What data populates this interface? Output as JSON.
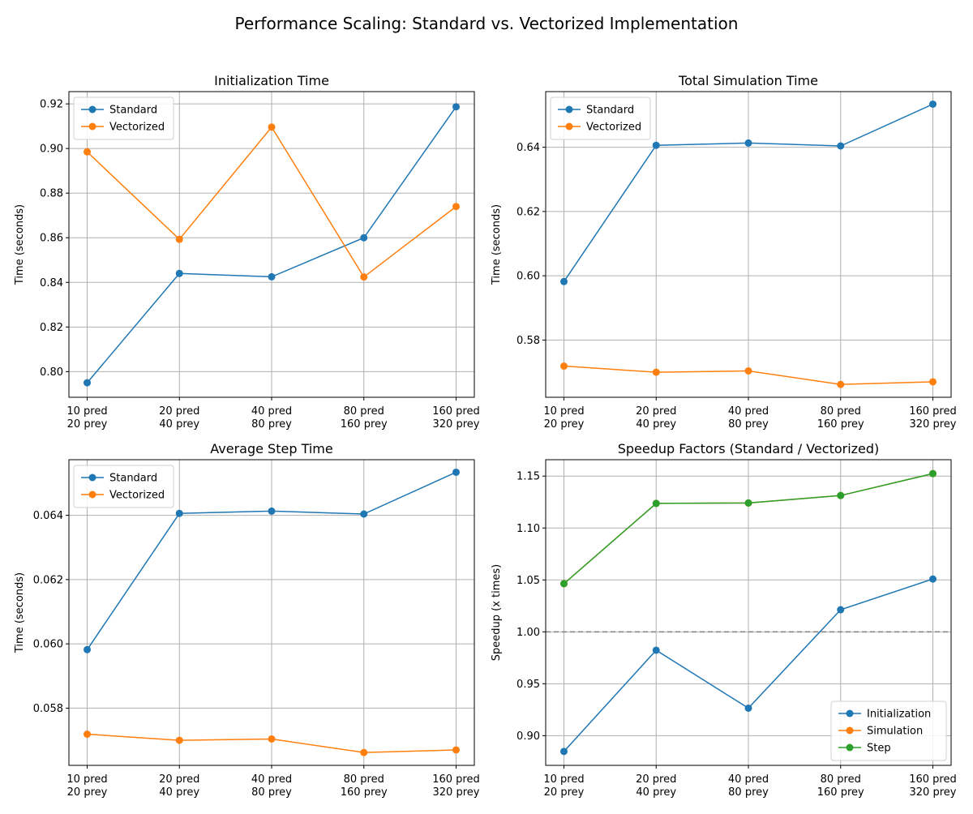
{
  "figure": {
    "title": "Performance Scaling: Standard vs. Vectorized Implementation"
  },
  "colors": {
    "blue": "#1f77b4",
    "orange": "#ff7f0e",
    "green": "#2ca02c",
    "grid": "#b0b0b0",
    "reference": "#808080"
  },
  "chart_data": [
    {
      "type": "line",
      "title": "Initialization Time",
      "xlabel": "",
      "ylabel": "Time (seconds)",
      "categories": [
        [
          "10 pred",
          "20 prey"
        ],
        [
          "20 pred",
          "40 prey"
        ],
        [
          "40 pred",
          "80 prey"
        ],
        [
          "80 pred",
          "160 prey"
        ],
        [
          "160 pred",
          "320 prey"
        ]
      ],
      "ylim": [
        0.7885,
        0.9255
      ],
      "yticks": [
        0.8,
        0.82,
        0.84,
        0.86,
        0.88,
        0.9,
        0.92
      ],
      "ytick_labels": [
        "0.80",
        "0.82",
        "0.84",
        "0.86",
        "0.88",
        "0.90",
        "0.92"
      ],
      "grid": true,
      "legend": "top-left",
      "series": [
        {
          "name": "Standard",
          "color": "#1f77b4",
          "values": [
            0.795,
            0.844,
            0.8425,
            0.86,
            0.9187
          ]
        },
        {
          "name": "Vectorized",
          "color": "#ff7f0e",
          "values": [
            0.8985,
            0.8593,
            0.9096,
            0.8424,
            0.874
          ]
        }
      ]
    },
    {
      "type": "line",
      "title": "Total Simulation Time",
      "xlabel": "",
      "ylabel": "Time (seconds)",
      "categories": [
        [
          "10 pred",
          "20 prey"
        ],
        [
          "20 pred",
          "40 prey"
        ],
        [
          "40 pred",
          "80 prey"
        ],
        [
          "80 pred",
          "160 prey"
        ],
        [
          "160 pred",
          "320 prey"
        ]
      ],
      "ylim": [
        0.5622,
        0.6573
      ],
      "yticks": [
        0.58,
        0.6,
        0.62,
        0.64
      ],
      "ytick_labels": [
        "0.58",
        "0.60",
        "0.62",
        "0.64"
      ],
      "grid": true,
      "legend": "top-left",
      "series": [
        {
          "name": "Standard",
          "color": "#1f77b4",
          "values": [
            0.5982,
            0.6406,
            0.6413,
            0.6404,
            0.6534
          ]
        },
        {
          "name": "Vectorized",
          "color": "#ff7f0e",
          "values": [
            0.5719,
            0.57,
            0.5704,
            0.5662,
            0.567
          ]
        }
      ]
    },
    {
      "type": "line",
      "title": "Average Step Time",
      "xlabel": "",
      "ylabel": "Time (seconds)",
      "categories": [
        [
          "10 pred",
          "20 prey"
        ],
        [
          "20 pred",
          "40 prey"
        ],
        [
          "40 pred",
          "80 prey"
        ],
        [
          "80 pred",
          "160 prey"
        ],
        [
          "160 pred",
          "320 prey"
        ]
      ],
      "ylim": [
        0.05622,
        0.06573
      ],
      "yticks": [
        0.058,
        0.06,
        0.062,
        0.064
      ],
      "ytick_labels": [
        "0.058",
        "0.060",
        "0.062",
        "0.064"
      ],
      "grid": true,
      "legend": "top-left",
      "series": [
        {
          "name": "Standard",
          "color": "#1f77b4",
          "values": [
            0.05982,
            0.06406,
            0.06413,
            0.06404,
            0.06534
          ]
        },
        {
          "name": "Vectorized",
          "color": "#ff7f0e",
          "values": [
            0.05719,
            0.057,
            0.05704,
            0.05662,
            0.0567
          ]
        }
      ]
    },
    {
      "type": "line",
      "title": "Speedup Factors (Standard / Vectorized)",
      "xlabel": "",
      "ylabel": "Speedup (x times)",
      "categories": [
        [
          "10 pred",
          "20 prey"
        ],
        [
          "20 pred",
          "40 prey"
        ],
        [
          "40 pred",
          "80 prey"
        ],
        [
          "80 pred",
          "160 prey"
        ],
        [
          "160 pred",
          "320 prey"
        ]
      ],
      "ylim": [
        0.8714,
        1.1658
      ],
      "yticks": [
        0.9,
        0.95,
        1.0,
        1.05,
        1.1,
        1.15
      ],
      "ytick_labels": [
        "0.90",
        "0.95",
        "1.00",
        "1.05",
        "1.10",
        "1.15"
      ],
      "grid": true,
      "legend": "bottom-right",
      "reference_line": 1.0,
      "series": [
        {
          "name": "Initialization",
          "color": "#1f77b4",
          "values": [
            0.8848,
            0.9823,
            0.9265,
            1.0213,
            1.0509
          ]
        },
        {
          "name": "Simulation",
          "color": "#ff7f0e",
          "values": [
            1.0464,
            1.1237,
            1.1241,
            1.1313,
            1.1524
          ]
        },
        {
          "name": "Step",
          "color": "#2ca02c",
          "values": [
            1.0464,
            1.1237,
            1.1241,
            1.1313,
            1.1524
          ]
        }
      ]
    }
  ]
}
